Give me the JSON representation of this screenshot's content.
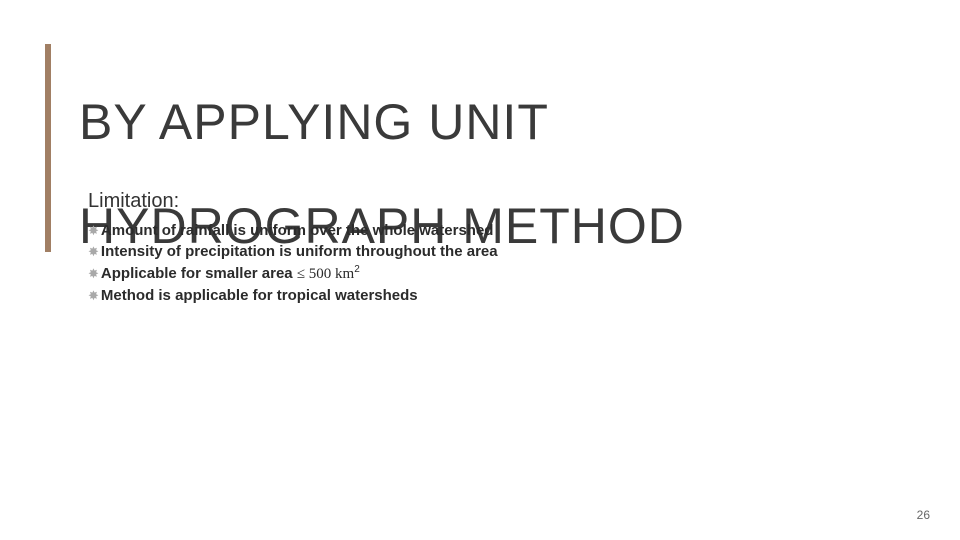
{
  "title": {
    "line1": "BY APPLYING UNIT",
    "line2": "HYDROGRAPH METHOD",
    "rule_color": "#a17f64",
    "text_color": "#3a3a3a",
    "fontsize": 50
  },
  "subheading": {
    "text": "Limitation:",
    "fontsize": 20,
    "color": "#333333"
  },
  "bullets": {
    "icon_glyph": "✸",
    "icon_color": "#a9a9a9",
    "text_color": "#2b2b2b",
    "fontsize": 15,
    "items": [
      {
        "text": "Amount of rainfall is uniform over the whole watershed"
      },
      {
        "text": "Intensity of precipitation is uniform throughout the area"
      },
      {
        "prefix": "Applicable for smaller area ",
        "math": "≤ 500 km",
        "sup": "2"
      },
      {
        "text": "Method is applicable for tropical watersheds"
      }
    ]
  },
  "page_number": "26",
  "background_color": "#ffffff"
}
